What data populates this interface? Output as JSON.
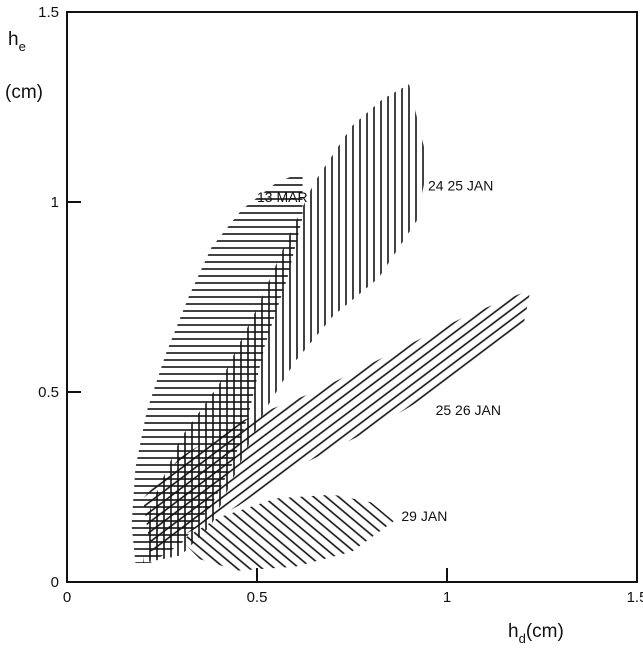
{
  "chart_data": {
    "type": "scatter",
    "title": "",
    "xlabel_main": "h",
    "xlabel_sub": "d",
    "xlabel_unit": "(cm)",
    "ylabel_main": "h",
    "ylabel_sub": "e",
    "ylabel_unit": "(cm)",
    "xlim": [
      0,
      1.5
    ],
    "ylim": [
      0,
      1.5
    ],
    "xticks": [
      "0",
      "0.5",
      "1",
      "1.5"
    ],
    "yticks": [
      "0",
      "0.5",
      "1",
      "1.5"
    ],
    "xtick_values": [
      0,
      0.5,
      1,
      1.5
    ],
    "ytick_values": [
      0,
      0.5,
      1,
      1.5
    ],
    "grid": false,
    "series": [
      {
        "name": "13 MAR",
        "hatch": "horizontal",
        "label_at": [
          0.5,
          1.0
        ],
        "outline": [
          [
            0.18,
            0.05
          ],
          [
            0.17,
            0.15
          ],
          [
            0.18,
            0.3
          ],
          [
            0.21,
            0.45
          ],
          [
            0.26,
            0.6
          ],
          [
            0.32,
            0.75
          ],
          [
            0.38,
            0.88
          ],
          [
            0.46,
            0.98
          ],
          [
            0.55,
            1.05
          ],
          [
            0.62,
            1.08
          ],
          [
            0.62,
            0.96
          ],
          [
            0.58,
            0.8
          ],
          [
            0.52,
            0.62
          ],
          [
            0.48,
            0.45
          ],
          [
            0.44,
            0.32
          ],
          [
            0.38,
            0.2
          ],
          [
            0.3,
            0.1
          ],
          [
            0.22,
            0.05
          ]
        ]
      },
      {
        "name": "24 25 JAN",
        "hatch": "vertical",
        "label_at": [
          0.95,
          1.03
        ],
        "outline": [
          [
            0.2,
            0.05
          ],
          [
            0.22,
            0.2
          ],
          [
            0.3,
            0.38
          ],
          [
            0.4,
            0.52
          ],
          [
            0.5,
            0.72
          ],
          [
            0.57,
            0.88
          ],
          [
            0.65,
            1.05
          ],
          [
            0.75,
            1.2
          ],
          [
            0.83,
            1.27
          ],
          [
            0.9,
            1.31
          ],
          [
            0.95,
            1.1
          ],
          [
            0.92,
            0.95
          ],
          [
            0.82,
            0.8
          ],
          [
            0.7,
            0.7
          ],
          [
            0.6,
            0.58
          ],
          [
            0.52,
            0.45
          ],
          [
            0.45,
            0.3
          ],
          [
            0.38,
            0.15
          ],
          [
            0.3,
            0.07
          ]
        ]
      },
      {
        "name": "25 26 JAN",
        "hatch": "diagonal-up",
        "label_at": [
          0.97,
          0.44
        ],
        "outline": [
          [
            0.22,
            0.08
          ],
          [
            0.2,
            0.22
          ],
          [
            0.3,
            0.33
          ],
          [
            0.45,
            0.42
          ],
          [
            0.65,
            0.5
          ],
          [
            0.85,
            0.6
          ],
          [
            1.05,
            0.7
          ],
          [
            1.22,
            0.77
          ],
          [
            1.2,
            0.67
          ],
          [
            1.0,
            0.52
          ],
          [
            0.8,
            0.4
          ],
          [
            0.6,
            0.3
          ],
          [
            0.45,
            0.2
          ],
          [
            0.3,
            0.12
          ]
        ]
      },
      {
        "name": "29 JAN",
        "hatch": "diagonal-down",
        "label_at": [
          0.88,
          0.16
        ],
        "outline": [
          [
            0.3,
            0.11
          ],
          [
            0.4,
            0.17
          ],
          [
            0.55,
            0.22
          ],
          [
            0.7,
            0.23
          ],
          [
            0.8,
            0.21
          ],
          [
            0.86,
            0.16
          ],
          [
            0.75,
            0.08
          ],
          [
            0.6,
            0.04
          ],
          [
            0.45,
            0.03
          ],
          [
            0.35,
            0.06
          ]
        ]
      }
    ]
  }
}
